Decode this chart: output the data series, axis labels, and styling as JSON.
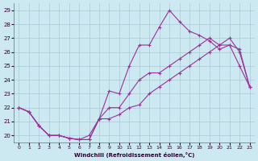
{
  "xlabel": "Windchill (Refroidissement éolien,°C)",
  "background_color": "#cce8f0",
  "grid_color": "#aac8d8",
  "line_color": "#993399",
  "xlim_min": -0.5,
  "xlim_max": 23.5,
  "ylim_min": 19.5,
  "ylim_max": 29.5,
  "yticks": [
    20,
    21,
    22,
    23,
    24,
    25,
    26,
    27,
    28,
    29
  ],
  "xticks": [
    0,
    1,
    2,
    3,
    4,
    5,
    6,
    7,
    8,
    9,
    10,
    11,
    12,
    13,
    14,
    15,
    16,
    17,
    18,
    19,
    20,
    21,
    22,
    23
  ],
  "line1_x": [
    0,
    1,
    2,
    3,
    4,
    5,
    6,
    7,
    8,
    9,
    10,
    11,
    12,
    13,
    14,
    15,
    16,
    17,
    18,
    19,
    20,
    21,
    22,
    23
  ],
  "line1_y": [
    22.0,
    21.7,
    20.7,
    20.0,
    20.0,
    19.8,
    19.7,
    19.7,
    21.2,
    21.2,
    21.5,
    22.0,
    22.2,
    23.0,
    23.5,
    24.0,
    24.5,
    25.0,
    25.5,
    26.0,
    26.5,
    27.0,
    26.0,
    23.5
  ],
  "line2_x": [
    0,
    1,
    2,
    3,
    4,
    5,
    6,
    7,
    8,
    9,
    10,
    11,
    12,
    13,
    14,
    15,
    16,
    17,
    18,
    19,
    20,
    21,
    22,
    23
  ],
  "line2_y": [
    22.0,
    21.7,
    20.7,
    20.0,
    20.0,
    19.8,
    19.7,
    20.0,
    21.2,
    22.0,
    22.0,
    23.0,
    24.0,
    24.5,
    24.5,
    25.0,
    25.5,
    26.0,
    26.5,
    27.0,
    26.5,
    26.5,
    26.2,
    23.5
  ],
  "line3_x": [
    0,
    1,
    2,
    3,
    4,
    5,
    6,
    7,
    8,
    9,
    10,
    11,
    12,
    13,
    14,
    15,
    16,
    17,
    18,
    19,
    20,
    21,
    22,
    23
  ],
  "line3_y": [
    22.0,
    21.7,
    20.7,
    20.0,
    20.0,
    19.8,
    19.7,
    19.7,
    21.2,
    23.2,
    23.0,
    25.0,
    26.5,
    26.5,
    27.8,
    29.0,
    28.2,
    27.5,
    27.2,
    26.8,
    26.2,
    26.5,
    25.0,
    23.5
  ]
}
